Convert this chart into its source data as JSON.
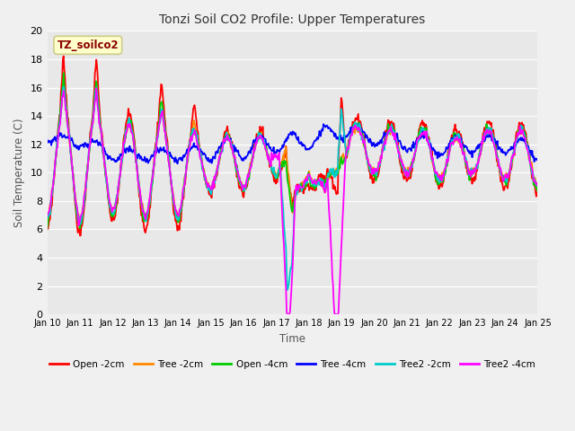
{
  "title": "Tonzi Soil CO2 Profile: Upper Temperatures",
  "xlabel": "Time",
  "ylabel": "Soil Temperature (C)",
  "ylim": [
    0,
    20
  ],
  "xlim": [
    0,
    15
  ],
  "fig_bg": "#f0f0f0",
  "plot_bg": "#e8e8e8",
  "annotation_text": "TZ_soilco2",
  "annotation_color": "#8b0000",
  "annotation_bg": "#ffffcc",
  "annotation_edge": "#cccc88",
  "grid_color": "#ffffff",
  "series": {
    "Open -2cm": {
      "color": "#ff0000",
      "lw": 1.3
    },
    "Tree -2cm": {
      "color": "#ff8800",
      "lw": 1.3
    },
    "Open -4cm": {
      "color": "#00cc00",
      "lw": 1.3
    },
    "Tree -4cm": {
      "color": "#0000ff",
      "lw": 1.3
    },
    "Tree2 -2cm": {
      "color": "#00cccc",
      "lw": 1.3
    },
    "Tree2 -4cm": {
      "color": "#ff00ff",
      "lw": 1.3
    }
  },
  "xtick_labels": [
    "Jan 10",
    "Jan 11",
    "Jan 12",
    "Jan 13",
    "Jan 14",
    "Jan 15",
    "Jan 16",
    "Jan 17",
    "Jan 18",
    "Jan 19",
    "Jan 20",
    "Jan 21",
    "Jan 22",
    "Jan 23",
    "Jan 24",
    "Jan 25"
  ],
  "xtick_positions": [
    0,
    1,
    2,
    3,
    4,
    5,
    6,
    7,
    8,
    9,
    10,
    11,
    12,
    13,
    14,
    15
  ],
  "ytick_labels": [
    "0",
    "2",
    "4",
    "6",
    "8",
    "10",
    "12",
    "14",
    "16",
    "18",
    "20"
  ],
  "ytick_positions": [
    0,
    2,
    4,
    6,
    8,
    10,
    12,
    14,
    16,
    18,
    20
  ]
}
